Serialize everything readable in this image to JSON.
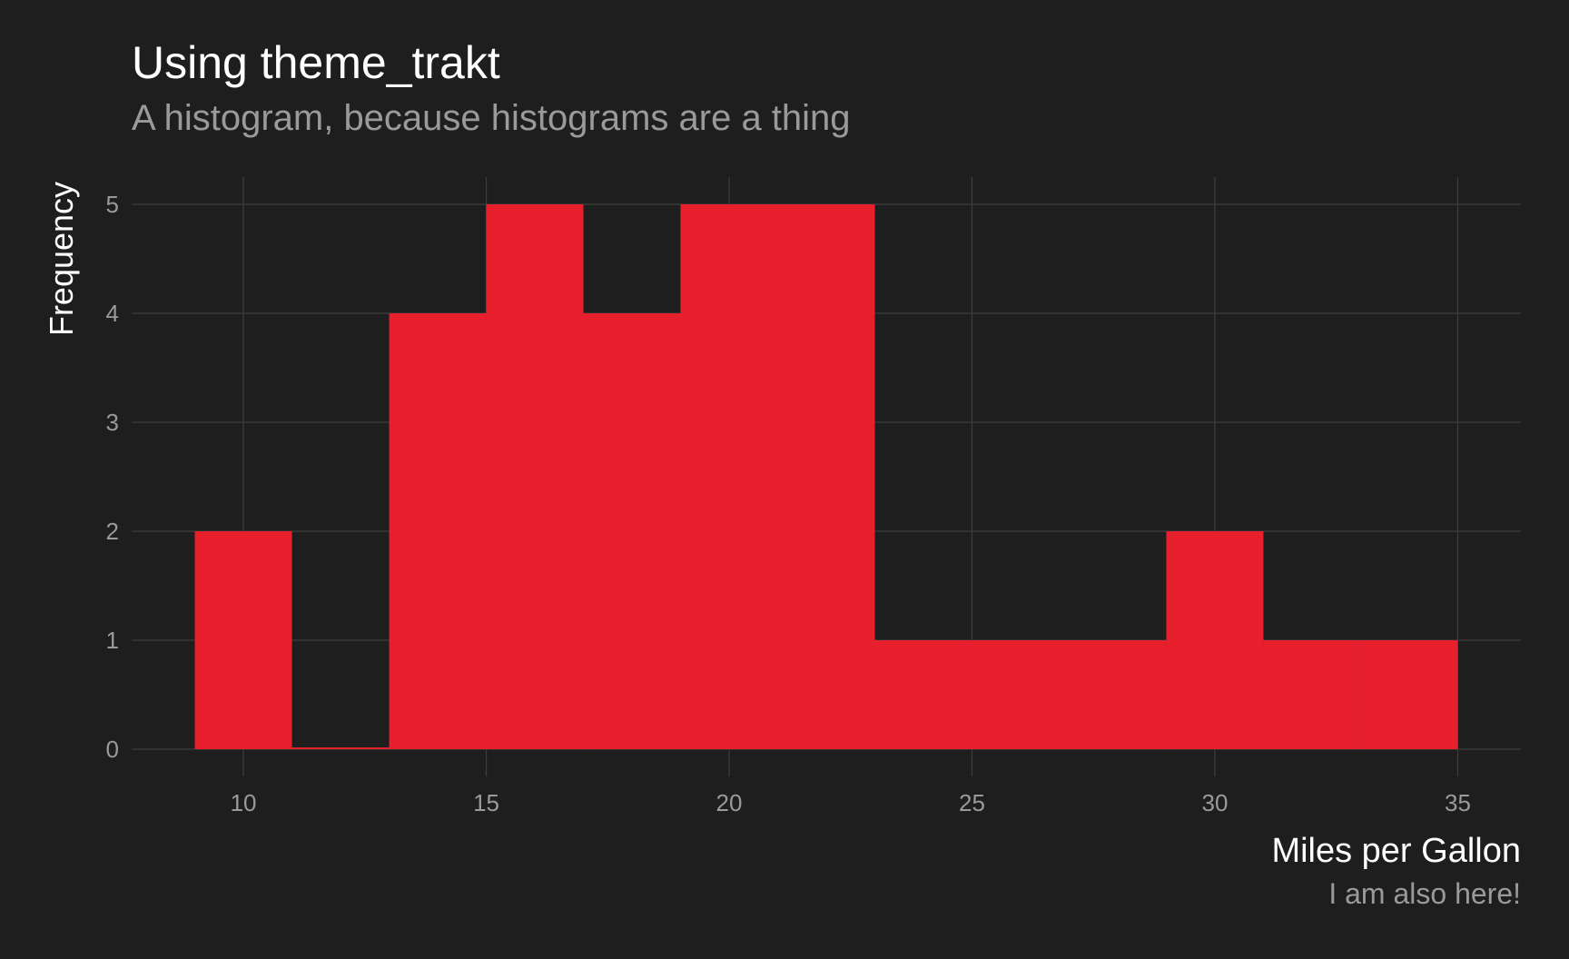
{
  "chart_data": {
    "type": "bar",
    "title": "Using theme_trakt",
    "subtitle": "A histogram, because histograms are a thing",
    "xlabel": "Miles per Gallon",
    "ylabel": "Frequency",
    "caption": "I am also here!",
    "bins": [
      {
        "x0": 9,
        "x1": 11,
        "count": 2
      },
      {
        "x0": 11,
        "x1": 13,
        "count": 0
      },
      {
        "x0": 13,
        "x1": 15,
        "count": 4
      },
      {
        "x0": 15,
        "x1": 17,
        "count": 5
      },
      {
        "x0": 17,
        "x1": 19,
        "count": 4
      },
      {
        "x0": 19,
        "x1": 21,
        "count": 5
      },
      {
        "x0": 21,
        "x1": 23,
        "count": 5
      },
      {
        "x0": 23,
        "x1": 25,
        "count": 1
      },
      {
        "x0": 25,
        "x1": 27,
        "count": 1
      },
      {
        "x0": 27,
        "x1": 29,
        "count": 1
      },
      {
        "x0": 29,
        "x1": 31,
        "count": 2
      },
      {
        "x0": 31,
        "x1": 33,
        "count": 1
      },
      {
        "x0": 33,
        "x1": 35,
        "count": 1
      }
    ],
    "xlim": [
      7.7,
      36.3
    ],
    "ylim": [
      -0.25,
      5.25
    ],
    "xticks": [
      10,
      15,
      20,
      25,
      30,
      35
    ],
    "yticks": [
      0,
      1,
      2,
      3,
      4,
      5
    ],
    "grid": true,
    "colors": {
      "bar": "#e8202e",
      "background": "#1e1e1e",
      "grid": "#3e3e3e"
    }
  }
}
